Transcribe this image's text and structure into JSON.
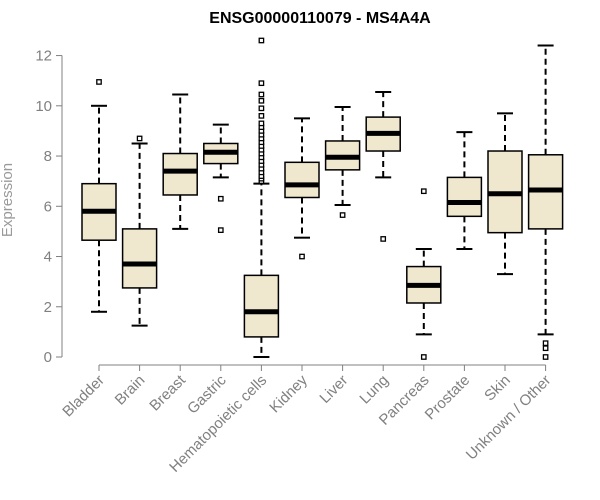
{
  "chart_data": {
    "type": "boxplot",
    "title": "ENSG00000110079 - MS4A4A",
    "xlabel": "",
    "ylabel": "Expression",
    "ylim": [
      0,
      12.5
    ],
    "yticks": [
      0,
      2,
      4,
      6,
      8,
      10,
      12
    ],
    "box_color": "#efe8cf",
    "categories": [
      "Bladder",
      "Brain",
      "Breast",
      "Gastric",
      "Hematopoietic cells",
      "Kidney",
      "Liver",
      "Lung",
      "Pancreas",
      "Prostate",
      "Skin",
      "Unknown / Other"
    ],
    "boxes": [
      {
        "q1": 4.65,
        "median": 5.8,
        "q3": 6.9,
        "whisker_low": 1.8,
        "whisker_high": 10.0,
        "outliers": [
          10.95
        ]
      },
      {
        "q1": 2.75,
        "median": 3.7,
        "q3": 5.1,
        "whisker_low": 1.25,
        "whisker_high": 8.5,
        "outliers": [
          8.7
        ]
      },
      {
        "q1": 6.45,
        "median": 7.4,
        "q3": 8.1,
        "whisker_low": 5.1,
        "whisker_high": 10.45,
        "outliers": []
      },
      {
        "q1": 7.7,
        "median": 8.15,
        "q3": 8.5,
        "whisker_low": 7.15,
        "whisker_high": 9.25,
        "outliers": [
          6.3,
          5.05
        ]
      },
      {
        "q1": 0.8,
        "median": 1.8,
        "q3": 3.25,
        "whisker_low": 0.0,
        "whisker_high": 6.9,
        "outliers": [
          7.0,
          7.1,
          7.2,
          7.35,
          7.5,
          7.65,
          7.8,
          7.95,
          8.1,
          8.25,
          8.4,
          8.55,
          8.7,
          8.85,
          9.0,
          9.15,
          9.3,
          9.6,
          9.9,
          10.2,
          10.45,
          10.9,
          12.6
        ]
      },
      {
        "q1": 6.35,
        "median": 6.85,
        "q3": 7.75,
        "whisker_low": 4.75,
        "whisker_high": 9.5,
        "outliers": [
          4.0
        ]
      },
      {
        "q1": 7.45,
        "median": 7.95,
        "q3": 8.6,
        "whisker_low": 6.05,
        "whisker_high": 9.95,
        "outliers": [
          5.65
        ]
      },
      {
        "q1": 8.2,
        "median": 8.9,
        "q3": 9.55,
        "whisker_low": 7.15,
        "whisker_high": 10.55,
        "outliers": [
          4.7
        ]
      },
      {
        "q1": 2.15,
        "median": 2.85,
        "q3": 3.6,
        "whisker_low": 0.9,
        "whisker_high": 4.3,
        "outliers": [
          6.6,
          0.0
        ]
      },
      {
        "q1": 5.6,
        "median": 6.15,
        "q3": 7.15,
        "whisker_low": 4.3,
        "whisker_high": 8.95,
        "outliers": []
      },
      {
        "q1": 4.95,
        "median": 6.5,
        "q3": 8.2,
        "whisker_low": 3.3,
        "whisker_high": 9.7,
        "outliers": []
      },
      {
        "q1": 5.1,
        "median": 6.65,
        "q3": 8.05,
        "whisker_low": 0.9,
        "whisker_high": 12.4,
        "outliers": [
          0.55,
          0.35,
          0.0
        ]
      }
    ]
  }
}
